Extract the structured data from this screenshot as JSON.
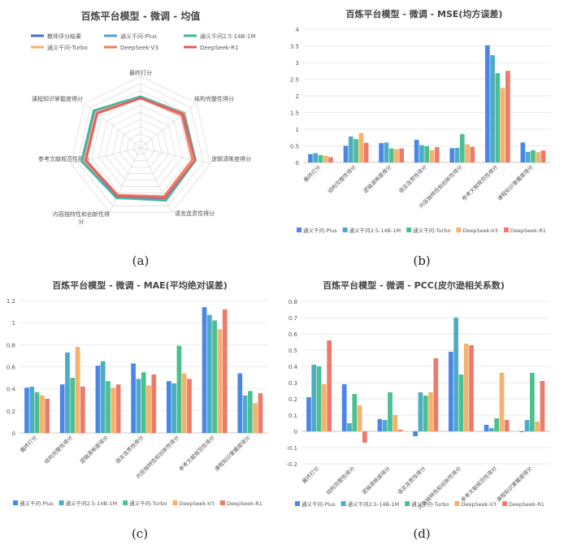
{
  "chart_data": [
    {
      "type": "radar",
      "title": "百炼平台模型 - 微调 - 均值",
      "caption": "(a)",
      "categories": [
        "最终打分",
        "结构完整性得分",
        "逻辑清晰度得分",
        "语言连贯性得分",
        "内容独特性和创新性得分",
        "参考文献规范性得分",
        "课程知识掌握度得分"
      ],
      "rmax": 10,
      "grid_rings": 10,
      "legend_position": "top",
      "series": [
        {
          "name": "教师评分结果",
          "color": "#4472C4",
          "values": [
            7.0,
            7.4,
            7.5,
            7.6,
            7.5,
            8.0,
            8.0
          ]
        },
        {
          "name": "通义千问-Plus",
          "color": "#5B9BD5",
          "values": [
            7.1,
            7.6,
            7.7,
            7.9,
            7.6,
            8.2,
            8.2
          ]
        },
        {
          "name": "通义千问2.5-14B-1M",
          "color": "#3CB89C",
          "values": [
            7.2,
            7.8,
            7.9,
            8.2,
            7.8,
            8.5,
            8.4
          ]
        },
        {
          "name": "通义千问-Turbo",
          "color": "#F4B16A",
          "values": [
            7.0,
            7.7,
            7.6,
            7.7,
            7.4,
            8.1,
            8.0
          ]
        },
        {
          "name": "DeepSeek-V3",
          "color": "#ED7D64",
          "values": [
            6.9,
            7.3,
            7.4,
            7.5,
            7.3,
            7.8,
            7.7
          ]
        },
        {
          "name": "DeepSeek-R1",
          "color": "#E05A6A",
          "values": [
            7.0,
            7.6,
            7.8,
            7.8,
            7.5,
            7.9,
            7.8
          ]
        }
      ]
    },
    {
      "type": "bar",
      "title": "百炼平台模型 - 微调 - MSE(均方误差)",
      "caption": "(b)",
      "categories": [
        "最终打分",
        "结构完整性得分",
        "逻辑清晰度得分",
        "语言连贯性得分",
        "内容独特性和创新性得分",
        "参考文献规范性得分",
        "课程知识掌握度得分"
      ],
      "ylim": [
        0,
        4
      ],
      "yticks": [
        0,
        0.5,
        1,
        1.5,
        2,
        2.5,
        3,
        3.5,
        4
      ],
      "legend_position": "bottom",
      "series": [
        {
          "name": "通义千问-Plus",
          "color": "#4A86E8",
          "values": [
            0.25,
            0.5,
            0.58,
            0.68,
            0.43,
            3.52,
            0.6
          ]
        },
        {
          "name": "通义千问2.5-14B-1M",
          "color": "#4BACC6",
          "values": [
            0.28,
            0.78,
            0.6,
            0.52,
            0.44,
            3.22,
            0.32
          ]
        },
        {
          "name": "通义千问-Turbo",
          "color": "#4CBF8F",
          "values": [
            0.22,
            0.7,
            0.42,
            0.49,
            0.85,
            2.68,
            0.37
          ]
        },
        {
          "name": "DeepSeek-V3",
          "color": "#F6B26B",
          "values": [
            0.2,
            0.88,
            0.4,
            0.37,
            0.55,
            2.24,
            0.31
          ]
        },
        {
          "name": "DeepSeek-R1",
          "color": "#EC7B6C",
          "values": [
            0.16,
            0.59,
            0.42,
            0.46,
            0.47,
            2.75,
            0.36
          ]
        }
      ]
    },
    {
      "type": "bar",
      "title": "百炼平台模型 - 微调 - MAE(平均绝对误差)",
      "caption": "(c)",
      "categories": [
        "最终打分",
        "结构完整性得分",
        "逻辑清晰度得分",
        "语言连贯性得分",
        "内容独特性和创新性得分",
        "参考文献规范性得分",
        "课程知识掌握度得分"
      ],
      "ylim": [
        0,
        1.2
      ],
      "yticks": [
        0,
        0.2,
        0.4,
        0.6,
        0.8,
        1,
        1.2
      ],
      "legend_position": "bottom",
      "series": [
        {
          "name": "通义千问-Plus",
          "color": "#4A86E8",
          "values": [
            0.41,
            0.44,
            0.61,
            0.63,
            0.47,
            1.14,
            0.54
          ]
        },
        {
          "name": "通义千问2.5-14B-1M",
          "color": "#4BACC6",
          "values": [
            0.42,
            0.73,
            0.65,
            0.49,
            0.45,
            1.07,
            0.34
          ]
        },
        {
          "name": "通义千问-Turbo",
          "color": "#4CBF8F",
          "values": [
            0.37,
            0.5,
            0.47,
            0.55,
            0.79,
            1.02,
            0.38
          ]
        },
        {
          "name": "DeepSeek-V3",
          "color": "#F6B26B",
          "values": [
            0.34,
            0.78,
            0.41,
            0.43,
            0.54,
            0.94,
            0.27
          ]
        },
        {
          "name": "DeepSeek-R1",
          "color": "#EC7B6C",
          "values": [
            0.31,
            0.42,
            0.44,
            0.53,
            0.49,
            1.12,
            0.36
          ]
        }
      ]
    },
    {
      "type": "bar",
      "title": "百炼平台模型 - 微调 - PCC(皮尔逊相关系数)",
      "caption": "(d)",
      "categories": [
        "最终打分",
        "结构完整性得分",
        "逻辑清晰度得分",
        "语言连贯性得分",
        "内容独特性和创新性得分",
        "参考文献规范性得分",
        "课程知识掌握度得分"
      ],
      "ylim": [
        -0.2,
        0.8
      ],
      "yticks": [
        -0.2,
        -0.1,
        0,
        0.1,
        0.2,
        0.3,
        0.4,
        0.5,
        0.6,
        0.7,
        0.8
      ],
      "legend_position": "bottom",
      "series": [
        {
          "name": "通义千问-Plus",
          "color": "#4A86E8",
          "values": [
            0.21,
            0.29,
            0.075,
            -0.03,
            0.49,
            0.04,
            -0.005
          ]
        },
        {
          "name": "通义千问2.5-14B-1M",
          "color": "#4BACC6",
          "values": [
            0.41,
            0.05,
            0.07,
            0.24,
            0.7,
            0.02,
            0.07
          ]
        },
        {
          "name": "通义千问-Turbo",
          "color": "#4CBF8F",
          "values": [
            0.4,
            0.23,
            0.24,
            0.22,
            0.35,
            0.08,
            0.36
          ]
        },
        {
          "name": "DeepSeek-V3",
          "color": "#F6B26B",
          "values": [
            0.29,
            0.16,
            0.1,
            0.24,
            0.54,
            0.36,
            0.06
          ]
        },
        {
          "name": "DeepSeek-R1",
          "color": "#EC7B6C",
          "values": [
            0.56,
            -0.07,
            0.01,
            0.45,
            0.53,
            0.07,
            0.31
          ]
        }
      ]
    }
  ]
}
